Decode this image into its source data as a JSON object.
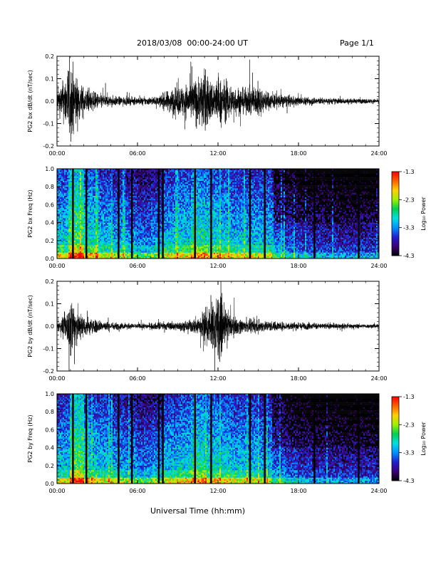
{
  "header": {
    "title": "2018/03/08  00:00-24:00 UT",
    "page": "Page 1/1"
  },
  "x_axis_label": "Universal Time (hh:mm)",
  "x_ticks": [
    "00:00",
    "06:00",
    "12:00",
    "18:00",
    "24:00"
  ],
  "colorbar": {
    "label": "Log₁₀ Power",
    "ticks": [
      "-1.3",
      "-2.3",
      "-3.3",
      "-4.3"
    ],
    "range": [
      -4.3,
      -1.3
    ],
    "colors": [
      "#000000",
      "#3a007a",
      "#2020d0",
      "#0090ff",
      "#00e0e0",
      "#00d050",
      "#a0f000",
      "#ffd000",
      "#ff6000",
      "#ff0000"
    ]
  },
  "chart_data": [
    {
      "type": "line",
      "ylabel": "PG2 bx dB/dt (nT/sec)",
      "ylim": [
        -0.2,
        0.2
      ],
      "y_ticks": [
        "0.2",
        "0.1",
        "0.0",
        "-0.1",
        "-0.2"
      ],
      "xlim_hours": [
        0,
        24
      ],
      "envelope": {
        "hours": [
          0,
          0.3,
          0.6,
          0.9,
          1.2,
          1.6,
          2.0,
          2.5,
          3.0,
          4.0,
          5.0,
          6.0,
          7.0,
          7.5,
          8.0,
          8.5,
          9.0,
          9.5,
          10.0,
          10.5,
          11.0,
          11.5,
          12.0,
          12.5,
          13.0,
          13.5,
          14.0,
          14.5,
          15.0,
          15.5,
          16.0,
          17.0,
          18.0,
          19.0,
          20.0,
          21.0,
          22.0,
          23.0,
          24.0
        ],
        "amplitude": [
          0.05,
          0.08,
          0.12,
          0.2,
          0.17,
          0.1,
          0.07,
          0.05,
          0.04,
          0.025,
          0.02,
          0.018,
          0.02,
          0.02,
          0.04,
          0.06,
          0.07,
          0.08,
          0.1,
          0.12,
          0.15,
          0.1,
          0.12,
          0.1,
          0.08,
          0.07,
          0.06,
          0.07,
          0.08,
          0.05,
          0.04,
          0.03,
          0.02,
          0.02,
          0.015,
          0.015,
          0.012,
          0.012,
          0.01
        ]
      }
    },
    {
      "type": "heatmap",
      "ylabel": "PG2 bx Freq (Hz)",
      "ylim": [
        0.0,
        1.0
      ],
      "y_ticks": [
        "1.0",
        "0.8",
        "0.6",
        "0.4",
        "0.2",
        "0.0"
      ],
      "xlim_hours": [
        0,
        24
      ],
      "dark_stripes_hours": [
        1.2,
        2.2,
        4.6,
        5.6,
        7.6,
        7.9,
        10.3,
        11.5,
        14.4,
        15.5,
        19.2,
        22.5
      ],
      "activity_by_hour": [
        0.55,
        0.8,
        0.6,
        0.5,
        0.45,
        0.4,
        0.35,
        0.4,
        0.5,
        0.55,
        0.65,
        0.6,
        0.55,
        0.5,
        0.5,
        0.5,
        0.3,
        0.2,
        0.15,
        0.15,
        0.12,
        0.1,
        0.1,
        0.1
      ]
    },
    {
      "type": "line",
      "ylabel": "PG2 by dB/dt (nT/sec)",
      "ylim": [
        -0.2,
        0.2
      ],
      "y_ticks": [
        "0.2",
        "0.1",
        "0.0",
        "-0.1",
        "-0.2"
      ],
      "xlim_hours": [
        0,
        24
      ],
      "envelope": {
        "hours": [
          0,
          0.3,
          0.6,
          0.9,
          1.2,
          1.6,
          2.0,
          2.5,
          3.0,
          4.0,
          5.0,
          6.0,
          7.0,
          8.0,
          9.0,
          10.0,
          10.5,
          11.0,
          11.5,
          12.0,
          12.5,
          13.0,
          13.5,
          14.0,
          15.0,
          16.0,
          17.0,
          18.0,
          19.0,
          20.0,
          21.0,
          22.0,
          23.0,
          24.0
        ],
        "amplitude": [
          0.02,
          0.03,
          0.06,
          0.12,
          0.17,
          0.08,
          0.05,
          0.04,
          0.03,
          0.02,
          0.015,
          0.012,
          0.015,
          0.02,
          0.02,
          0.03,
          0.05,
          0.08,
          0.1,
          0.18,
          0.09,
          0.05,
          0.04,
          0.03,
          0.03,
          0.025,
          0.02,
          0.02,
          0.015,
          0.015,
          0.012,
          0.012,
          0.01,
          0.01
        ]
      }
    },
    {
      "type": "heatmap",
      "ylabel": "PG2 by Freq (Hz)",
      "ylim": [
        0.0,
        1.0
      ],
      "y_ticks": [
        "1.0",
        "0.8",
        "0.6",
        "0.4",
        "0.2",
        "0.0"
      ],
      "xlim_hours": [
        0,
        24
      ],
      "dark_stripes_hours": [
        1.2,
        2.2,
        4.6,
        5.6,
        7.6,
        7.9,
        10.3,
        11.5,
        14.4,
        15.5,
        19.2,
        22.5
      ],
      "activity_by_hour": [
        0.5,
        0.8,
        0.55,
        0.5,
        0.45,
        0.4,
        0.35,
        0.4,
        0.5,
        0.55,
        0.65,
        0.6,
        0.55,
        0.5,
        0.5,
        0.45,
        0.3,
        0.2,
        0.15,
        0.12,
        0.12,
        0.1,
        0.1,
        0.1
      ]
    }
  ]
}
